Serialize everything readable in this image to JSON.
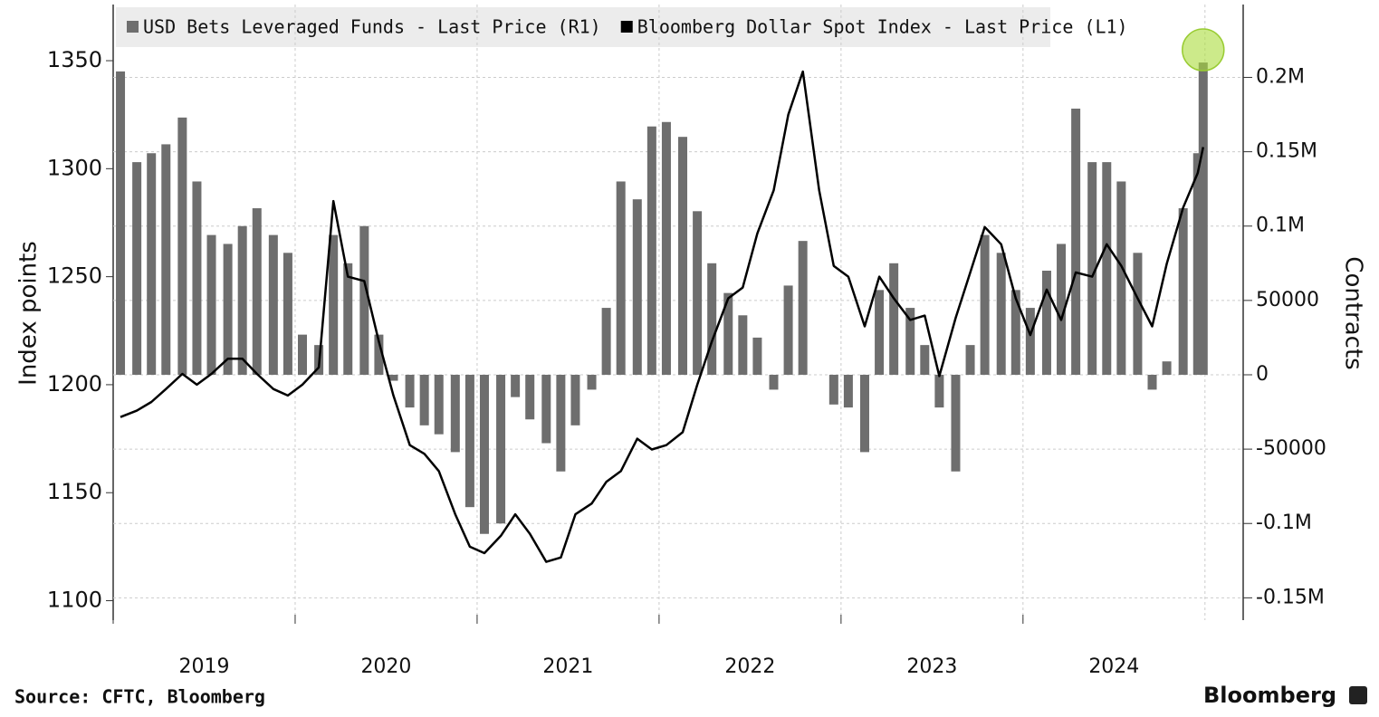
{
  "chart_data": {
    "type": "bar-line",
    "x": [
      2019.04,
      2019.13,
      2019.21,
      2019.29,
      2019.38,
      2019.46,
      2019.54,
      2019.63,
      2019.71,
      2019.79,
      2019.88,
      2019.96,
      2020.04,
      2020.13,
      2020.21,
      2020.29,
      2020.38,
      2020.46,
      2020.54,
      2020.63,
      2020.71,
      2020.79,
      2020.88,
      2020.96,
      2021.04,
      2021.13,
      2021.21,
      2021.29,
      2021.38,
      2021.46,
      2021.54,
      2021.63,
      2021.71,
      2021.79,
      2021.88,
      2021.96,
      2022.04,
      2022.13,
      2022.21,
      2022.29,
      2022.38,
      2022.46,
      2022.54,
      2022.63,
      2022.71,
      2022.79,
      2022.88,
      2022.96,
      2023.04,
      2023.13,
      2023.21,
      2023.29,
      2023.38,
      2023.46,
      2023.54,
      2023.63,
      2023.71,
      2023.79,
      2023.88,
      2023.96,
      2024.04,
      2024.13,
      2024.21,
      2024.29,
      2024.38,
      2024.46,
      2024.54,
      2024.63,
      2024.71,
      2024.79,
      2024.88,
      2024.96,
      2024.99
    ],
    "series": [
      {
        "name": "USD Bets Leveraged Funds - Last Price (R1)",
        "color": "#6e6e6e",
        "axis": "y2",
        "kind": "bar",
        "values": [
          204000,
          143000,
          149000,
          155000,
          173000,
          130000,
          94000,
          88000,
          100000,
          112000,
          94000,
          82000,
          27000,
          20000,
          94000,
          75000,
          100000,
          27000,
          -4000,
          -22000,
          -34000,
          -40000,
          -52000,
          -89000,
          -107000,
          -100000,
          -15000,
          -30000,
          -46000,
          -65000,
          -34000,
          -10000,
          45000,
          130000,
          118000,
          167000,
          170000,
          160000,
          110000,
          75000,
          55000,
          40000,
          25000,
          -10000,
          60000,
          90000,
          0,
          -20000,
          -22000,
          -52000,
          57000,
          75000,
          45000,
          20000,
          -22000,
          -65000,
          20000,
          94000,
          82000,
          57000,
          45000,
          70000,
          88000,
          179000,
          143000,
          143000,
          130000,
          82000,
          -10000,
          9000,
          112000,
          149000,
          210000
        ]
      },
      {
        "name": "Bloomberg Dollar Spot Index - Last Price (L1)",
        "color": "#000000",
        "axis": "y",
        "kind": "line",
        "values": [
          1185,
          1188,
          1192,
          1198,
          1205,
          1200,
          1205,
          1212,
          1212,
          1205,
          1198,
          1195,
          1200,
          1208,
          1285,
          1250,
          1248,
          1220,
          1195,
          1172,
          1168,
          1160,
          1140,
          1125,
          1122,
          1130,
          1140,
          1131,
          1118,
          1120,
          1140,
          1145,
          1155,
          1160,
          1175,
          1170,
          1172,
          1178,
          1200,
          1220,
          1240,
          1245,
          1270,
          1290,
          1325,
          1345,
          1290,
          1255,
          1250,
          1227,
          1250,
          1240,
          1230,
          1232,
          1204,
          1231,
          1252,
          1273,
          1265,
          1240,
          1223,
          1244,
          1230,
          1252,
          1250,
          1265,
          1255,
          1240,
          1227,
          1256,
          1282,
          1298,
          1310
        ]
      }
    ],
    "xlim": [
      2019,
      2025.21
    ],
    "xticks": [
      {
        "value": 2019.5,
        "label": "2019"
      },
      {
        "value": 2020.5,
        "label": "2020"
      },
      {
        "value": 2021.5,
        "label": "2021"
      },
      {
        "value": 2022.5,
        "label": "2022"
      },
      {
        "value": 2023.5,
        "label": "2023"
      },
      {
        "value": 2024.5,
        "label": "2024"
      }
    ],
    "ylim": [
      1091,
      1376
    ],
    "yticks": [
      1100,
      1150,
      1200,
      1250,
      1300,
      1350
    ],
    "y2lim": [
      -165000,
      249000
    ],
    "y2ticks": [
      {
        "value": 200000,
        "label": "0.2M"
      },
      {
        "value": 150000,
        "label": "0.15M"
      },
      {
        "value": 100000,
        "label": "0.1M"
      },
      50000,
      0,
      -50000,
      {
        "value": -100000,
        "label": "-0.1M"
      },
      {
        "value": -150000,
        "label": "-0.15M"
      }
    ],
    "ylabel": "Index points",
    "y2label": "Contracts",
    "source": "Source: CFTC, Bloomberg",
    "brand": "Bloomberg",
    "grid": true
  }
}
